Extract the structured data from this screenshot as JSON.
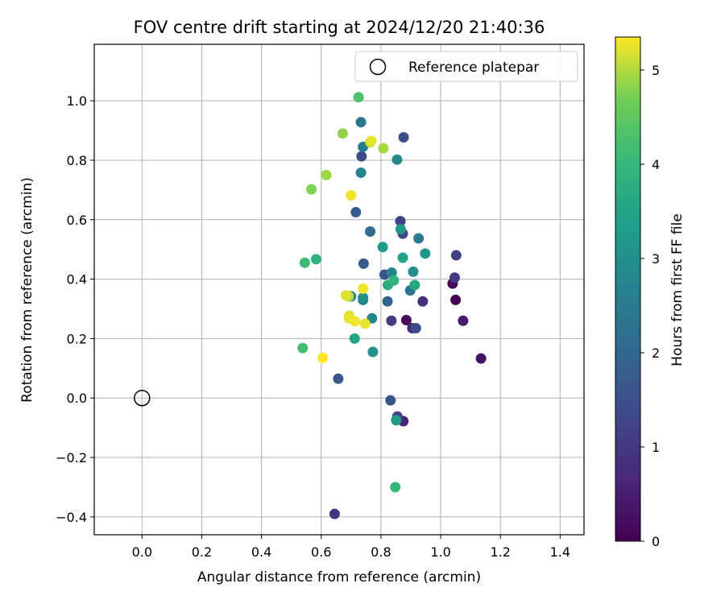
{
  "chart_data": {
    "type": "scatter",
    "title": "FOV centre drift starting at 2024/12/20 21:40:36",
    "xlabel": "Angular distance from reference (arcmin)",
    "ylabel": "Rotation from reference (arcmin)",
    "xlim": [
      -0.16,
      1.48
    ],
    "ylim": [
      -0.46,
      1.19
    ],
    "xticks": [
      0.0,
      0.2,
      0.4,
      0.6,
      0.8,
      1.0,
      1.2,
      1.4
    ],
    "xtick_labels": [
      "0.0",
      "0.2",
      "0.4",
      "0.6",
      "0.8",
      "1.0",
      "1.2",
      "1.4"
    ],
    "yticks": [
      -0.4,
      -0.2,
      0.0,
      0.2,
      0.4,
      0.6,
      0.8,
      1.0
    ],
    "ytick_labels": [
      "−0.4",
      "−0.2",
      "0.0",
      "0.2",
      "0.4",
      "0.6",
      "0.8",
      "1.0"
    ],
    "grid": true,
    "legend": {
      "position": "top-right",
      "entries": [
        "Reference platepar"
      ]
    },
    "reference_point": {
      "label": "Reference platepar",
      "x": 0.0,
      "y": 0.0
    },
    "colorbar": {
      "label": "Hours from first FF file",
      "colormap": "viridis",
      "range": [
        0,
        5.35
      ],
      "ticks": [
        0,
        1,
        2,
        3,
        4,
        5
      ],
      "tick_labels": [
        "0",
        "1",
        "2",
        "3",
        "4",
        "5"
      ]
    },
    "points": [
      {
        "x": 1.05,
        "y": 0.33,
        "hours": 0.0
      },
      {
        "x": 1.04,
        "y": 0.385,
        "hours": 0.1
      },
      {
        "x": 0.885,
        "y": 0.262,
        "hours": 0.15
      },
      {
        "x": 1.135,
        "y": 0.133,
        "hours": 0.3
      },
      {
        "x": 1.075,
        "y": 0.26,
        "hours": 0.45
      },
      {
        "x": 0.875,
        "y": -0.078,
        "hours": 0.6
      },
      {
        "x": 0.905,
        "y": 0.235,
        "hours": 0.75
      },
      {
        "x": 0.94,
        "y": 0.325,
        "hours": 0.8
      },
      {
        "x": 0.645,
        "y": -0.39,
        "hours": 0.9
      },
      {
        "x": 1.047,
        "y": 0.405,
        "hours": 1.05
      },
      {
        "x": 0.835,
        "y": 0.26,
        "hours": 1.1
      },
      {
        "x": 0.865,
        "y": 0.595,
        "hours": 1.15
      },
      {
        "x": 1.052,
        "y": 0.48,
        "hours": 1.2
      },
      {
        "x": 0.855,
        "y": -0.062,
        "hours": 1.3
      },
      {
        "x": 0.873,
        "y": 0.553,
        "hours": 1.35
      },
      {
        "x": 0.735,
        "y": 0.813,
        "hours": 1.4
      },
      {
        "x": 0.917,
        "y": 0.235,
        "hours": 1.4
      },
      {
        "x": 0.876,
        "y": 0.877,
        "hours": 1.45
      },
      {
        "x": 0.812,
        "y": 0.415,
        "hours": 1.6
      },
      {
        "x": 0.657,
        "y": 0.065,
        "hours": 1.65
      },
      {
        "x": 0.832,
        "y": -0.008,
        "hours": 1.65
      },
      {
        "x": 0.742,
        "y": 0.452,
        "hours": 1.7
      },
      {
        "x": 0.716,
        "y": 0.625,
        "hours": 1.75
      },
      {
        "x": 0.822,
        "y": 0.325,
        "hours": 1.9
      },
      {
        "x": 0.764,
        "y": 0.56,
        "hours": 2.1
      },
      {
        "x": 0.898,
        "y": 0.362,
        "hours": 2.3
      },
      {
        "x": 0.733,
        "y": 0.928,
        "hours": 2.4
      },
      {
        "x": 0.74,
        "y": 0.845,
        "hours": 2.45
      },
      {
        "x": 0.926,
        "y": 0.537,
        "hours": 2.5
      },
      {
        "x": 0.7,
        "y": 0.342,
        "hours": 2.55
      },
      {
        "x": 0.74,
        "y": 0.33,
        "hours": 2.6
      },
      {
        "x": 0.836,
        "y": 0.422,
        "hours": 2.7
      },
      {
        "x": 0.77,
        "y": 0.268,
        "hours": 2.75
      },
      {
        "x": 0.733,
        "y": 0.758,
        "hours": 2.75
      },
      {
        "x": 0.854,
        "y": 0.802,
        "hours": 2.85
      },
      {
        "x": 0.908,
        "y": 0.425,
        "hours": 2.95
      },
      {
        "x": 0.74,
        "y": 0.338,
        "hours": 3.0
      },
      {
        "x": 0.773,
        "y": 0.155,
        "hours": 3.05
      },
      {
        "x": 0.948,
        "y": 0.486,
        "hours": 3.15
      },
      {
        "x": 0.866,
        "y": 0.568,
        "hours": 3.2
      },
      {
        "x": 0.851,
        "y": -0.075,
        "hours": 3.25
      },
      {
        "x": 0.806,
        "y": 0.508,
        "hours": 3.3
      },
      {
        "x": 0.873,
        "y": 0.472,
        "hours": 3.45
      },
      {
        "x": 0.712,
        "y": 0.2,
        "hours": 3.5
      },
      {
        "x": 0.913,
        "y": 0.38,
        "hours": 3.6
      },
      {
        "x": 0.823,
        "y": 0.38,
        "hours": 3.75
      },
      {
        "x": 0.843,
        "y": 0.395,
        "hours": 3.85
      },
      {
        "x": 0.583,
        "y": 0.467,
        "hours": 3.9
      },
      {
        "x": 0.848,
        "y": -0.3,
        "hours": 4.0
      },
      {
        "x": 0.545,
        "y": 0.455,
        "hours": 4.1
      },
      {
        "x": 0.538,
        "y": 0.168,
        "hours": 4.15
      },
      {
        "x": 0.725,
        "y": 1.012,
        "hours": 4.3
      },
      {
        "x": 0.567,
        "y": 0.702,
        "hours": 4.75
      },
      {
        "x": 0.672,
        "y": 0.89,
        "hours": 4.85
      },
      {
        "x": 0.617,
        "y": 0.75,
        "hours": 4.9
      },
      {
        "x": 0.808,
        "y": 0.84,
        "hours": 4.95
      },
      {
        "x": 0.692,
        "y": 0.342,
        "hours": 5.0
      },
      {
        "x": 0.764,
        "y": 0.86,
        "hours": 5.05
      },
      {
        "x": 0.694,
        "y": 0.277,
        "hours": 5.15
      },
      {
        "x": 0.683,
        "y": 0.345,
        "hours": 5.2
      },
      {
        "x": 0.747,
        "y": 0.25,
        "hours": 5.25
      },
      {
        "x": 0.768,
        "y": 0.865,
        "hours": 5.25
      },
      {
        "x": 0.693,
        "y": 0.268,
        "hours": 5.25
      },
      {
        "x": 0.74,
        "y": 0.368,
        "hours": 5.3
      },
      {
        "x": 0.7,
        "y": 0.682,
        "hours": 5.3
      },
      {
        "x": 0.713,
        "y": 0.258,
        "hours": 5.3
      },
      {
        "x": 0.605,
        "y": 0.135,
        "hours": 5.35
      }
    ]
  }
}
